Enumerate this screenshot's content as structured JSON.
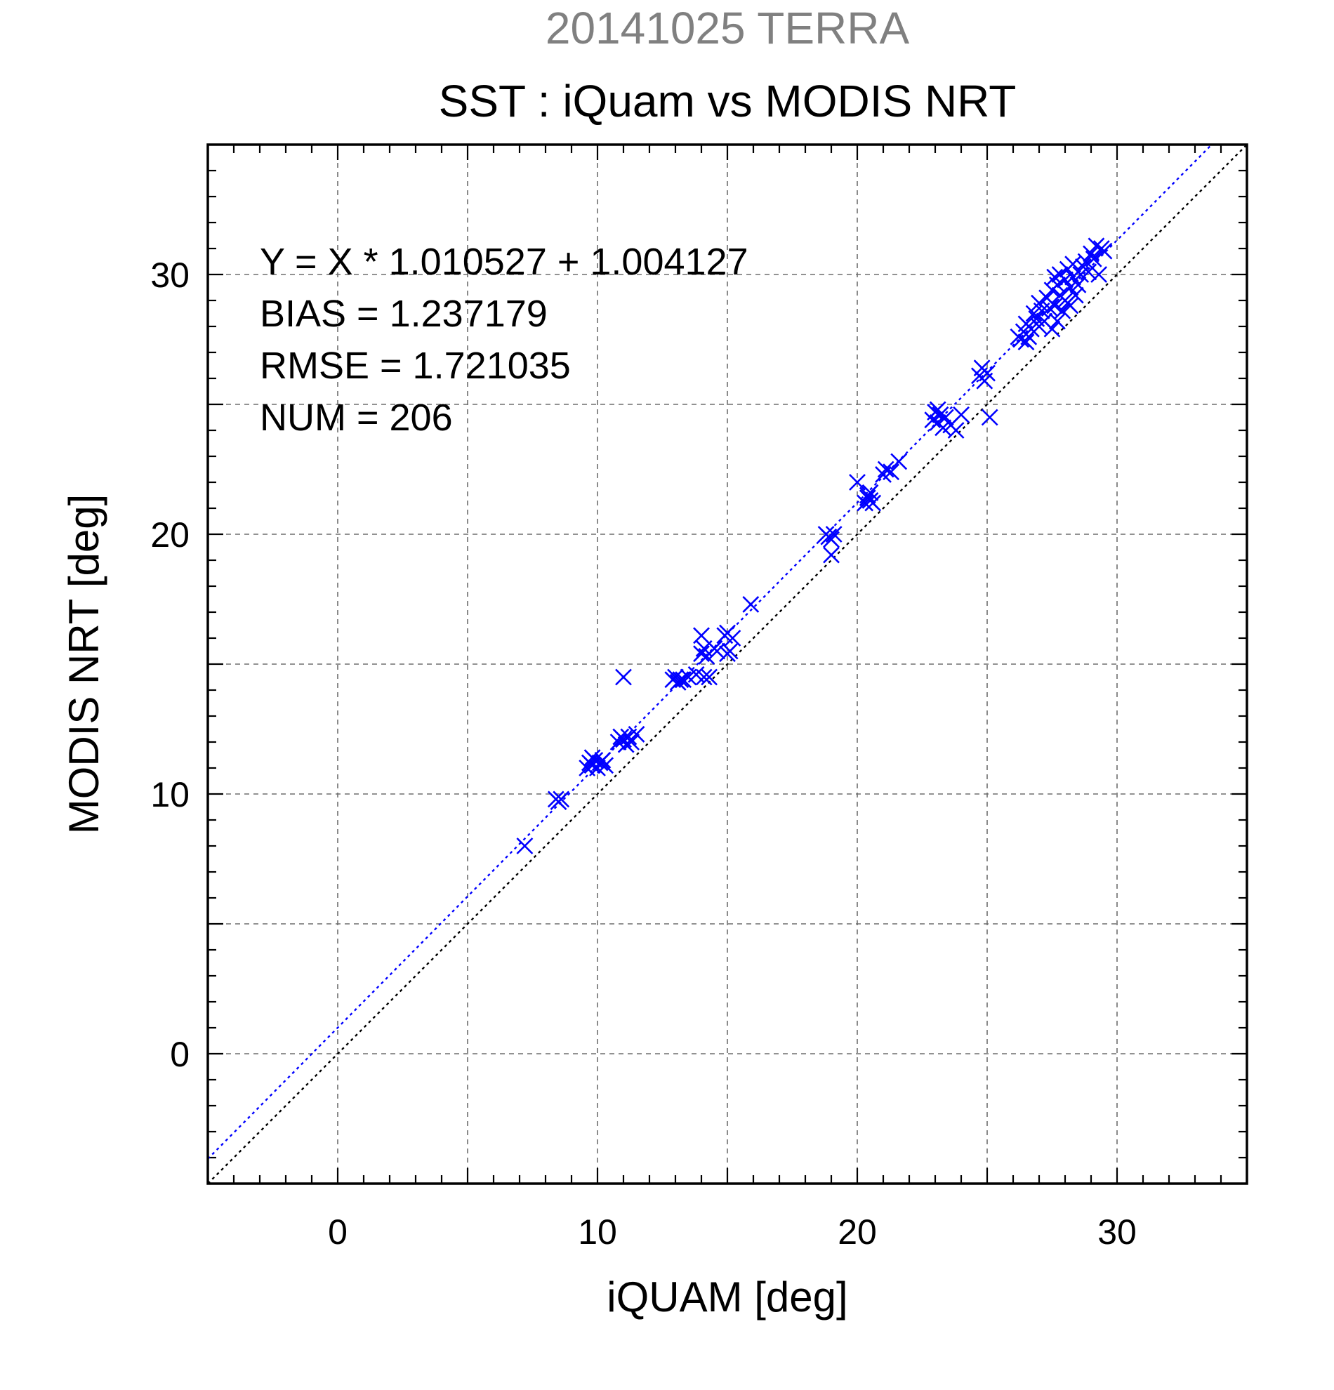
{
  "chart_data": {
    "type": "scatter",
    "supertitle": "20141025 TERRA",
    "title": "SST : iQuam vs MODIS NRT",
    "xlabel": "iQUAM [deg]",
    "ylabel": "MODIS NRT [deg]",
    "xlim": [
      -5,
      35
    ],
    "ylim": [
      -5,
      35
    ],
    "xticks": [
      0,
      10,
      20,
      30
    ],
    "yticks": [
      0,
      10,
      20,
      30
    ],
    "grid": true,
    "stats": [
      "Y = X * 1.010527 + 1.004127",
      "BIAS = 1.237179",
      "RMSE = 1.721035",
      "NUM = 206"
    ],
    "regression": {
      "slope": 1.010527,
      "intercept": 1.004127,
      "color": "#0000ff"
    },
    "identity_line": {
      "color": "#000000"
    },
    "marker_color": "#0000ff",
    "points": [
      [
        7.2,
        8.0
      ],
      [
        8.5,
        9.7
      ],
      [
        8.6,
        9.8
      ],
      [
        8.4,
        9.8
      ],
      [
        9.6,
        11.0
      ],
      [
        9.7,
        11.2
      ],
      [
        9.8,
        11.1
      ],
      [
        9.9,
        11.3
      ],
      [
        10.0,
        11.0
      ],
      [
        10.1,
        11.2
      ],
      [
        9.8,
        11.4
      ],
      [
        10.2,
        11.3
      ],
      [
        10.3,
        11.1
      ],
      [
        10.8,
        12.0
      ],
      [
        10.9,
        12.2
      ],
      [
        11.0,
        12.1
      ],
      [
        11.1,
        11.9
      ],
      [
        11.2,
        12.2
      ],
      [
        11.3,
        12.0
      ],
      [
        11.5,
        12.3
      ],
      [
        11.0,
        14.5
      ],
      [
        12.9,
        14.4
      ],
      [
        13.0,
        14.5
      ],
      [
        13.1,
        14.3
      ],
      [
        13.2,
        14.4
      ],
      [
        13.3,
        14.4
      ],
      [
        13.5,
        14.5
      ],
      [
        13.8,
        14.6
      ],
      [
        14.0,
        15.4
      ],
      [
        14.1,
        15.6
      ],
      [
        14.2,
        15.3
      ],
      [
        14.1,
        14.5
      ],
      [
        14.3,
        14.5
      ],
      [
        14.0,
        16.1
      ],
      [
        14.5,
        15.6
      ],
      [
        14.6,
        15.5
      ],
      [
        14.9,
        16.1
      ],
      [
        15.0,
        16.2
      ],
      [
        15.1,
        15.5
      ],
      [
        15.2,
        16.0
      ],
      [
        15.0,
        15.4
      ],
      [
        15.9,
        17.3
      ],
      [
        18.8,
        20.0
      ],
      [
        18.9,
        19.9
      ],
      [
        19.0,
        19.8
      ],
      [
        19.1,
        20.0
      ],
      [
        19.0,
        19.2
      ],
      [
        20.0,
        22.0
      ],
      [
        20.3,
        21.2
      ],
      [
        20.4,
        21.5
      ],
      [
        20.5,
        21.3
      ],
      [
        20.4,
        21.4
      ],
      [
        20.6,
        21.2
      ],
      [
        20.5,
        21.6
      ],
      [
        21.0,
        22.3
      ],
      [
        21.1,
        22.5
      ],
      [
        21.3,
        22.4
      ],
      [
        21.6,
        22.8
      ],
      [
        22.9,
        24.4
      ],
      [
        23.0,
        24.7
      ],
      [
        23.1,
        24.3
      ],
      [
        23.2,
        24.6
      ],
      [
        23.3,
        24.1
      ],
      [
        23.4,
        24.5
      ],
      [
        23.6,
        24.2
      ],
      [
        23.8,
        24.0
      ],
      [
        24.0,
        24.6
      ],
      [
        23.1,
        24.8
      ],
      [
        24.7,
        26.1
      ],
      [
        24.8,
        26.4
      ],
      [
        24.9,
        25.9
      ],
      [
        25.0,
        26.2
      ],
      [
        25.1,
        24.5
      ],
      [
        26.2,
        27.6
      ],
      [
        26.3,
        27.5
      ],
      [
        26.4,
        27.8
      ],
      [
        26.5,
        27.4
      ],
      [
        26.6,
        27.6
      ],
      [
        26.7,
        27.9
      ],
      [
        26.5,
        28.1
      ],
      [
        26.8,
        28.5
      ],
      [
        26.9,
        28.3
      ],
      [
        27.0,
        28.9
      ],
      [
        27.1,
        28.6
      ],
      [
        27.2,
        28.2
      ],
      [
        27.3,
        29.1
      ],
      [
        27.0,
        28.0
      ],
      [
        27.4,
        28.7
      ],
      [
        27.5,
        29.4
      ],
      [
        27.6,
        28.8
      ],
      [
        27.6,
        29.9
      ],
      [
        27.7,
        28.2
      ],
      [
        27.7,
        29.6
      ],
      [
        27.8,
        29.2
      ],
      [
        27.8,
        30.0
      ],
      [
        27.9,
        28.6
      ],
      [
        27.5,
        27.9
      ],
      [
        28.0,
        29.0
      ],
      [
        28.0,
        29.8
      ],
      [
        28.1,
        28.9
      ],
      [
        28.1,
        30.2
      ],
      [
        28.2,
        29.5
      ],
      [
        28.2,
        28.8
      ],
      [
        28.3,
        29.9
      ],
      [
        28.3,
        30.4
      ],
      [
        28.4,
        29.2
      ],
      [
        28.5,
        29.6
      ],
      [
        28.6,
        30.0
      ],
      [
        28.7,
        30.3
      ],
      [
        28.8,
        30.5
      ],
      [
        28.9,
        30.1
      ],
      [
        29.0,
        30.8
      ],
      [
        29.1,
        30.6
      ],
      [
        29.2,
        31.1
      ],
      [
        29.3,
        30.0
      ],
      [
        29.4,
        31.0
      ],
      [
        29.5,
        30.9
      ]
    ]
  }
}
